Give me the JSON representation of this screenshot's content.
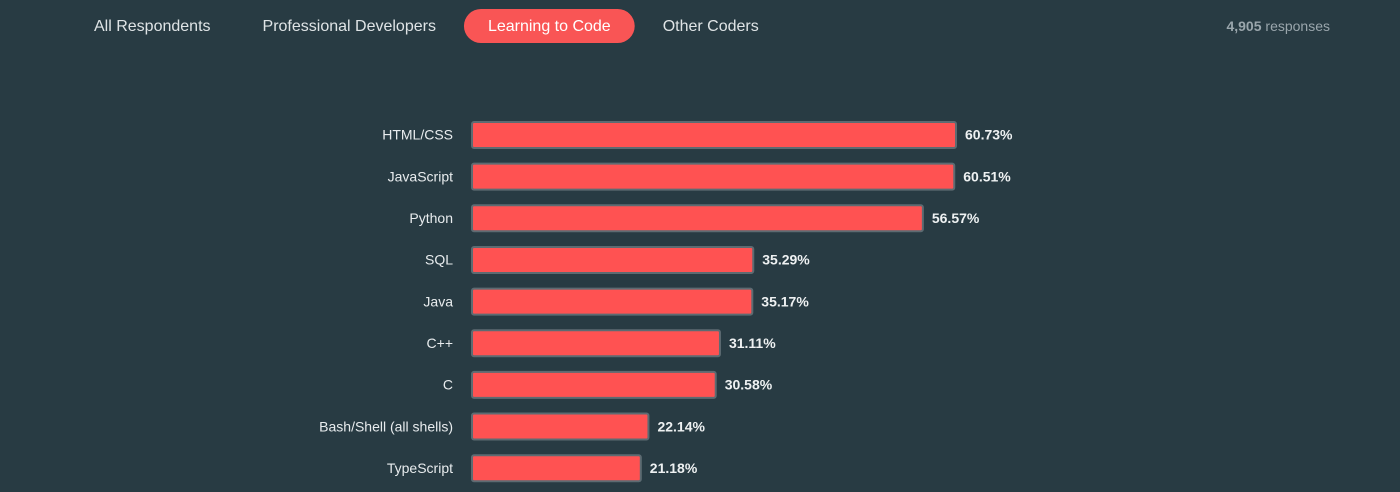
{
  "tabs": [
    "All Respondents",
    "Professional Developers",
    "Learning to Code",
    "Other Coders"
  ],
  "active_tab": 2,
  "responses": {
    "count": "4,905",
    "label": "responses"
  },
  "chart_data": {
    "type": "bar",
    "orientation": "horizontal",
    "categories": [
      "HTML/CSS",
      "JavaScript",
      "Python",
      "SQL",
      "Java",
      "C++",
      "C",
      "Bash/Shell (all shells)",
      "TypeScript"
    ],
    "values": [
      60.73,
      60.51,
      56.57,
      35.29,
      35.17,
      31.11,
      30.58,
      22.14,
      21.18
    ],
    "value_labels": [
      "60.73%",
      "60.51%",
      "56.57%",
      "35.29%",
      "35.17%",
      "31.11%",
      "30.58%",
      "22.14%",
      "21.18%"
    ],
    "color": "#ff5252"
  }
}
